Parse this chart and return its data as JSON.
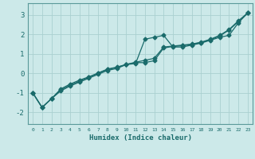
{
  "xlabel": "Humidex (Indice chaleur)",
  "background_color": "#cce9e9",
  "grid_color": "#aad0d0",
  "line_color": "#1a6b6b",
  "spine_color": "#5a9a9a",
  "xlim": [
    -0.5,
    23.5
  ],
  "ylim": [
    -2.6,
    3.6
  ],
  "xticks": [
    0,
    1,
    2,
    3,
    4,
    5,
    6,
    7,
    8,
    9,
    10,
    11,
    12,
    13,
    14,
    15,
    16,
    17,
    18,
    19,
    20,
    21,
    22,
    23
  ],
  "yticks": [
    -2,
    -1,
    0,
    1,
    2,
    3
  ],
  "line1_x": [
    0,
    1,
    2,
    3,
    4,
    5,
    6,
    7,
    8,
    9,
    10,
    11,
    12,
    13,
    14,
    15,
    16,
    17,
    18,
    19,
    20,
    21,
    22,
    23
  ],
  "line1_y": [
    -1.0,
    -1.75,
    -1.3,
    -0.9,
    -0.65,
    -0.45,
    -0.25,
    -0.05,
    0.15,
    0.25,
    0.45,
    0.5,
    1.75,
    1.85,
    1.95,
    1.35,
    1.35,
    1.45,
    1.55,
    1.7,
    1.85,
    1.95,
    2.6,
    3.1
  ],
  "line2_x": [
    0,
    1,
    2,
    3,
    4,
    5,
    6,
    7,
    8,
    9,
    10,
    11,
    12,
    13,
    14,
    15,
    16,
    17,
    18,
    19,
    20,
    21,
    22,
    23
  ],
  "line2_y": [
    -1.0,
    -1.75,
    -1.3,
    -0.85,
    -0.6,
    -0.4,
    -0.2,
    0.0,
    0.2,
    0.3,
    0.45,
    0.55,
    0.55,
    0.65,
    1.3,
    1.38,
    1.42,
    1.48,
    1.58,
    1.72,
    1.92,
    2.22,
    2.66,
    3.1
  ],
  "line3_x": [
    0,
    1,
    2,
    3,
    4,
    5,
    6,
    7,
    8,
    9,
    10,
    11,
    12,
    13,
    14,
    15,
    16,
    17,
    18,
    19,
    20,
    21,
    22,
    23
  ],
  "line3_y": [
    -1.0,
    -1.75,
    -1.3,
    -0.8,
    -0.55,
    -0.35,
    -0.18,
    0.02,
    0.22,
    0.32,
    0.46,
    0.57,
    0.67,
    0.77,
    1.35,
    1.4,
    1.45,
    1.5,
    1.6,
    1.75,
    1.95,
    2.25,
    2.7,
    3.1
  ]
}
